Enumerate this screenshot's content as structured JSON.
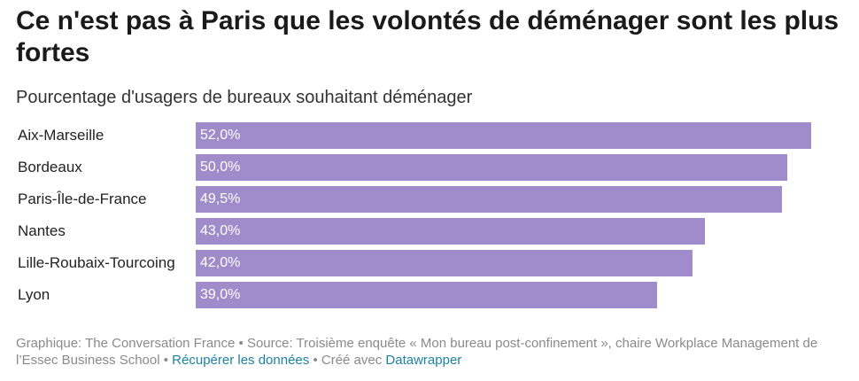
{
  "chart_data": {
    "type": "bar",
    "orientation": "horizontal",
    "title": "Ce n'est pas à Paris que les volontés de déménager sont les plus fortes",
    "subtitle": "Pourcentage d'usagers de bureaux souhaitant déménager",
    "categories": [
      "Aix-Marseille",
      "Bordeaux",
      "Paris-Île-de-France",
      "Nantes",
      "Lille-Roubaix-Tourcoing",
      "Lyon"
    ],
    "values": [
      52.0,
      50.0,
      49.5,
      43.0,
      42.0,
      39.0
    ],
    "value_labels": [
      "52,0%",
      "50,0%",
      "49,5%",
      "43,0%",
      "42,0%",
      "39,0%"
    ],
    "xlim": [
      0,
      52
    ],
    "grid": false,
    "bar_color": "#a08ccb"
  },
  "footer": {
    "text": "Graphique: The Conversation France • Source: Troisième enquête « Mon bureau post-confinement », chaire Workplace Management de l’Essec Business School • ",
    "link_data": "Récupérer les données",
    "separator": " • Créé avec ",
    "link_tool": "Datawrapper",
    "link_color": "#1d81a2"
  }
}
